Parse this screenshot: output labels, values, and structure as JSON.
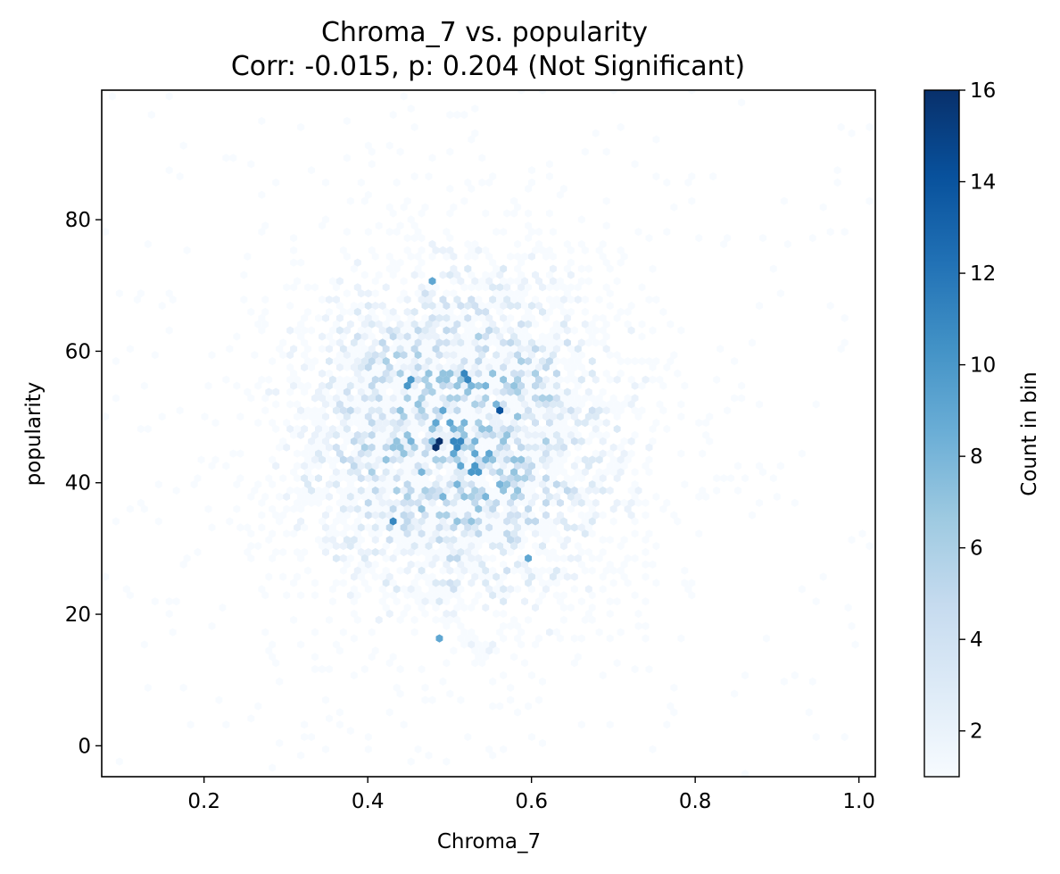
{
  "chart_data": {
    "type": "heatmap",
    "subtype": "hexbin",
    "title": "Chroma_7 vs. popularity",
    "subtitle": "Corr: -0.015, p: 0.204 (Not Significant)",
    "xlabel": "Chroma_7",
    "ylabel": "popularity",
    "xlim": [
      0.075,
      1.02
    ],
    "ylim": [
      -4.7,
      99.7
    ],
    "x_ticks": [
      0.2,
      0.4,
      0.6,
      0.8,
      1.0
    ],
    "x_tick_labels": [
      "0.2",
      "0.4",
      "0.6",
      "0.8",
      "1.0"
    ],
    "y_ticks": [
      0,
      20,
      40,
      60,
      80
    ],
    "y_tick_labels": [
      "0",
      "20",
      "40",
      "60",
      "80"
    ],
    "colormap": "Blues",
    "colormap_stops": [
      "#f7fbff",
      "#deebf7",
      "#c6dbef",
      "#9ecae1",
      "#6baed6",
      "#4292c6",
      "#2171b5",
      "#08519c",
      "#08306b"
    ],
    "colorbar": {
      "label": "Count in bin",
      "range": [
        1,
        16
      ],
      "ticks": [
        2,
        4,
        6,
        8,
        10,
        12,
        14,
        16
      ],
      "tick_labels": [
        "2",
        "4",
        "6",
        "8",
        "10",
        "12",
        "14",
        "16"
      ]
    },
    "grid": false,
    "distribution": {
      "x_center": 0.51,
      "x_spread": 0.12,
      "y_center": 47,
      "y_spread": 16
    },
    "notable_bins": [
      {
        "x": 0.485,
        "y": 46,
        "count": 16
      },
      {
        "x": 0.56,
        "y": 51,
        "count": 14
      },
      {
        "x": 0.51,
        "y": 46,
        "count": 11
      },
      {
        "x": 0.52,
        "y": 56,
        "count": 11
      },
      {
        "x": 0.43,
        "y": 34,
        "count": 11
      },
      {
        "x": 0.45,
        "y": 55,
        "count": 10
      },
      {
        "x": 0.475,
        "y": 71,
        "count": 9
      },
      {
        "x": 0.49,
        "y": 17,
        "count": 9
      },
      {
        "x": 0.53,
        "y": 42,
        "count": 10
      },
      {
        "x": 0.595,
        "y": 29,
        "count": 9
      }
    ]
  }
}
